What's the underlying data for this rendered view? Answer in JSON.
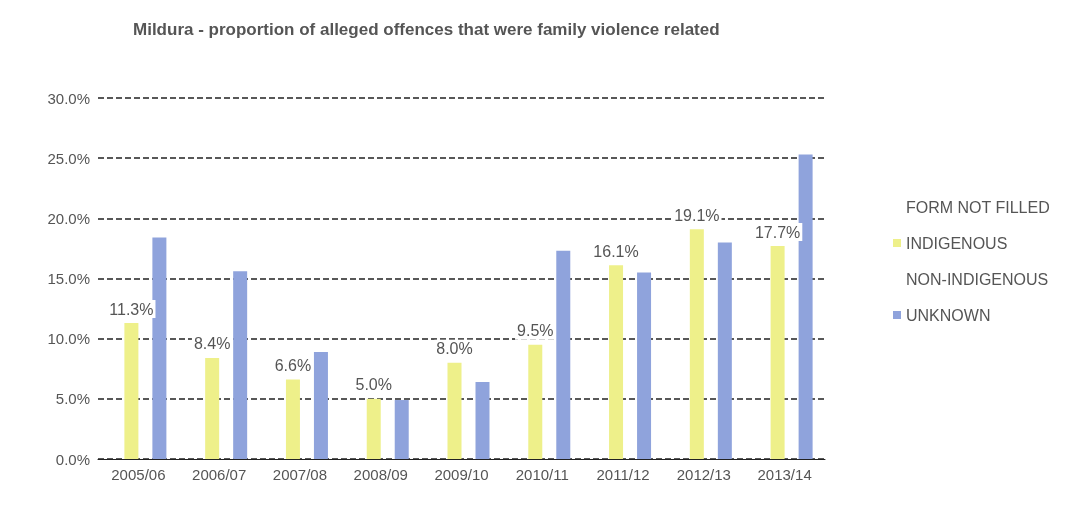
{
  "chart_data": {
    "type": "bar",
    "title": "Mildura - proportion of alleged offences that were family violence related",
    "categories": [
      "2005/06",
      "2006/07",
      "2007/08",
      "2008/09",
      "2009/10",
      "2010/11",
      "2011/12",
      "2012/13",
      "2013/14"
    ],
    "series": [
      {
        "name": "FORM NOT FILLED",
        "values": [
          null,
          null,
          null,
          null,
          null,
          null,
          null,
          null,
          null
        ]
      },
      {
        "name": "INDIGENOUS",
        "color": "#eef08a",
        "values": [
          11.3,
          8.4,
          6.6,
          5.0,
          8.0,
          9.5,
          16.1,
          19.1,
          17.7
        ],
        "value_labels": [
          "11.3%",
          "8.4%",
          "6.6%",
          "5.0%",
          "8.0%",
          "9.5%",
          "16.1%",
          "19.1%",
          "17.7%"
        ]
      },
      {
        "name": "NON-INDIGENOUS",
        "values": [
          null,
          null,
          null,
          null,
          null,
          null,
          null,
          null,
          null
        ]
      },
      {
        "name": "UNKNOWN",
        "color": "#8fa3dc",
        "values": [
          18.4,
          15.6,
          8.9,
          4.9,
          6.4,
          17.3,
          15.5,
          18.0,
          25.3
        ]
      }
    ],
    "ylim": [
      0,
      30
    ],
    "yticks": [
      {
        "value": 0,
        "label": "0.0%"
      },
      {
        "value": 5,
        "label": "5.0%"
      },
      {
        "value": 10,
        "label": "10.0%"
      },
      {
        "value": 15,
        "label": "15.0%"
      },
      {
        "value": 20,
        "label": "20.0%"
      },
      {
        "value": 25,
        "label": "25.0%"
      },
      {
        "value": 30,
        "label": "30.0%"
      }
    ],
    "grid": "y",
    "legend": "right"
  }
}
